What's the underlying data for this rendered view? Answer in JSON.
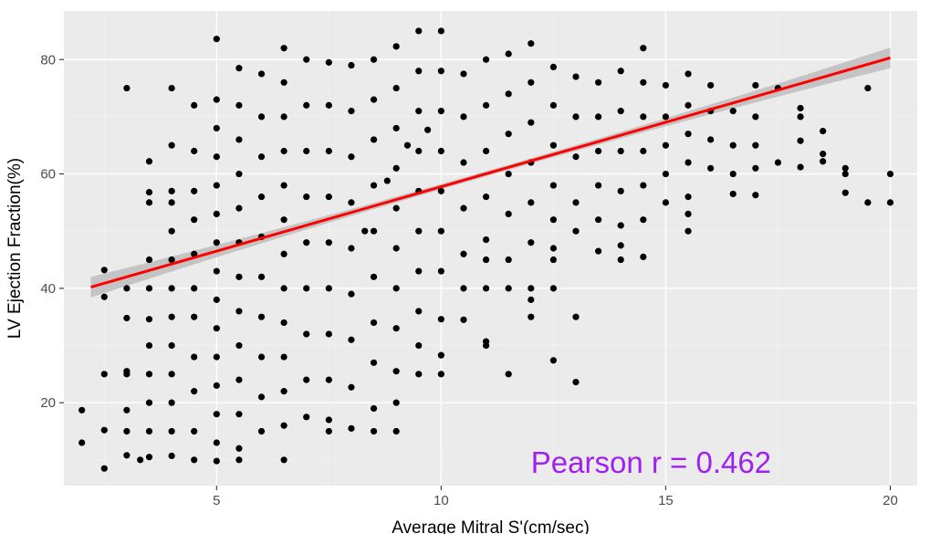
{
  "chart_data": {
    "type": "scatter",
    "title": "",
    "xlabel": "Average Mitral S'(cm/sec)",
    "ylabel": "LV Ejection Fraction(%)",
    "xlim": [
      1.6,
      20.6
    ],
    "ylim": [
      5.5,
      88.5
    ],
    "x_ticks": [
      5,
      10,
      15,
      20
    ],
    "y_ticks": [
      20,
      40,
      60,
      80
    ],
    "grid": true,
    "legend": "none",
    "annotation": {
      "text": "Pearson r =  0.462",
      "x": 12.0,
      "y": 9.5
    },
    "regression": {
      "x_start": 2.2,
      "x_end": 20.0,
      "y_start": 40.2,
      "y_end": 80.3,
      "ci_half_width_ends": 1.8,
      "ci_half_width_center": 0.45
    },
    "points": [
      [
        2.0,
        18.7
      ],
      [
        2.0,
        13.0
      ],
      [
        2.5,
        43.2
      ],
      [
        2.5,
        38.5
      ],
      [
        2.5,
        25.0
      ],
      [
        2.5,
        15.2
      ],
      [
        2.5,
        8.5
      ],
      [
        3.0,
        75.0
      ],
      [
        3.0,
        40.0
      ],
      [
        3.0,
        34.8
      ],
      [
        3.0,
        25.5
      ],
      [
        3.0,
        25.0
      ],
      [
        3.0,
        18.7
      ],
      [
        3.0,
        15.0
      ],
      [
        3.0,
        10.8
      ],
      [
        3.3,
        10.0
      ],
      [
        3.5,
        62.2
      ],
      [
        3.5,
        56.8
      ],
      [
        3.5,
        55.0
      ],
      [
        3.5,
        45.0
      ],
      [
        3.5,
        40.0
      ],
      [
        3.5,
        34.6
      ],
      [
        3.5,
        30.0
      ],
      [
        3.5,
        25.0
      ],
      [
        3.5,
        20.0
      ],
      [
        3.5,
        15.0
      ],
      [
        3.5,
        10.5
      ],
      [
        4.0,
        75.0
      ],
      [
        4.0,
        65.0
      ],
      [
        4.0,
        57.0
      ],
      [
        4.0,
        55.0
      ],
      [
        4.0,
        50.0
      ],
      [
        4.0,
        45.0
      ],
      [
        4.0,
        40.0
      ],
      [
        4.0,
        35.0
      ],
      [
        4.0,
        30.0
      ],
      [
        4.0,
        25.0
      ],
      [
        4.0,
        20.0
      ],
      [
        4.0,
        15.0
      ],
      [
        4.0,
        10.7
      ],
      [
        4.5,
        72.0
      ],
      [
        4.5,
        64.0
      ],
      [
        4.5,
        57.0
      ],
      [
        4.5,
        52.0
      ],
      [
        4.5,
        46.0
      ],
      [
        4.5,
        40.0
      ],
      [
        4.5,
        35.0
      ],
      [
        4.5,
        28.0
      ],
      [
        4.5,
        22.0
      ],
      [
        4.5,
        15.0
      ],
      [
        4.5,
        10.0
      ],
      [
        5.0,
        83.6
      ],
      [
        5.0,
        73.0
      ],
      [
        5.0,
        68.0
      ],
      [
        5.0,
        63.0
      ],
      [
        5.0,
        58.0
      ],
      [
        5.0,
        53.0
      ],
      [
        5.0,
        48.0
      ],
      [
        5.0,
        43.0
      ],
      [
        5.0,
        38.0
      ],
      [
        5.0,
        33.0
      ],
      [
        5.0,
        28.0
      ],
      [
        5.0,
        23.0
      ],
      [
        5.0,
        18.0
      ],
      [
        5.0,
        13.0
      ],
      [
        5.0,
        9.8
      ],
      [
        5.5,
        78.5
      ],
      [
        5.5,
        72.0
      ],
      [
        5.5,
        66.0
      ],
      [
        5.5,
        60.0
      ],
      [
        5.5,
        54.0
      ],
      [
        5.5,
        48.0
      ],
      [
        5.5,
        42.0
      ],
      [
        5.5,
        36.0
      ],
      [
        5.5,
        30.0
      ],
      [
        5.5,
        24.0
      ],
      [
        5.5,
        18.0
      ],
      [
        5.5,
        12.0
      ],
      [
        5.5,
        10.0
      ],
      [
        6.0,
        77.5
      ],
      [
        6.0,
        70.0
      ],
      [
        6.0,
        63.0
      ],
      [
        6.0,
        56.0
      ],
      [
        6.0,
        49.0
      ],
      [
        6.0,
        42.0
      ],
      [
        6.0,
        35.0
      ],
      [
        6.0,
        28.0
      ],
      [
        6.0,
        21.0
      ],
      [
        6.0,
        15.0
      ],
      [
        6.5,
        82.0
      ],
      [
        6.5,
        76.0
      ],
      [
        6.5,
        70.0
      ],
      [
        6.5,
        64.0
      ],
      [
        6.5,
        58.0
      ],
      [
        6.5,
        52.0
      ],
      [
        6.5,
        46.0
      ],
      [
        6.5,
        40.0
      ],
      [
        6.5,
        34.0
      ],
      [
        6.5,
        28.0
      ],
      [
        6.5,
        22.0
      ],
      [
        6.5,
        16.0
      ],
      [
        6.5,
        10.0
      ],
      [
        7.0,
        80.0
      ],
      [
        7.0,
        72.0
      ],
      [
        7.0,
        64.0
      ],
      [
        7.0,
        56.0
      ],
      [
        7.0,
        48.0
      ],
      [
        7.0,
        40.0
      ],
      [
        7.0,
        32.0
      ],
      [
        7.0,
        24.0
      ],
      [
        7.0,
        17.5
      ],
      [
        7.5,
        79.5
      ],
      [
        7.5,
        72.0
      ],
      [
        7.5,
        64.0
      ],
      [
        7.5,
        56.0
      ],
      [
        7.5,
        48.0
      ],
      [
        7.5,
        40.0
      ],
      [
        7.5,
        32.0
      ],
      [
        7.5,
        24.0
      ],
      [
        7.5,
        17.0
      ],
      [
        7.5,
        15.0
      ],
      [
        8.0,
        79.0
      ],
      [
        8.0,
        71.0
      ],
      [
        8.0,
        63.0
      ],
      [
        8.0,
        55.0
      ],
      [
        8.0,
        47.0
      ],
      [
        8.0,
        39.0
      ],
      [
        8.0,
        31.0
      ],
      [
        8.0,
        22.7
      ],
      [
        8.0,
        15.5
      ],
      [
        8.3,
        50.0
      ],
      [
        8.5,
        80.0
      ],
      [
        8.5,
        73.0
      ],
      [
        8.5,
        66.0
      ],
      [
        8.5,
        58.0
      ],
      [
        8.5,
        50.0
      ],
      [
        8.5,
        42.0
      ],
      [
        8.5,
        34.0
      ],
      [
        8.5,
        27.0
      ],
      [
        8.5,
        19.0
      ],
      [
        8.5,
        15.0
      ],
      [
        8.8,
        58.8
      ],
      [
        9.0,
        82.3
      ],
      [
        9.0,
        75.0
      ],
      [
        9.0,
        68.0
      ],
      [
        9.0,
        61.0
      ],
      [
        9.0,
        54.0
      ],
      [
        9.0,
        47.0
      ],
      [
        9.0,
        40.0
      ],
      [
        9.0,
        33.0
      ],
      [
        9.0,
        25.5
      ],
      [
        9.0,
        20.0
      ],
      [
        9.0,
        15.0
      ],
      [
        9.25,
        65.0
      ],
      [
        9.5,
        85.0
      ],
      [
        9.5,
        78.0
      ],
      [
        9.5,
        71.0
      ],
      [
        9.5,
        64.0
      ],
      [
        9.5,
        57.0
      ],
      [
        9.5,
        50.0
      ],
      [
        9.5,
        43.0
      ],
      [
        9.5,
        36.0
      ],
      [
        9.5,
        30.0
      ],
      [
        9.5,
        25.0
      ],
      [
        9.7,
        67.7
      ],
      [
        10.0,
        85.0
      ],
      [
        10.0,
        78.0
      ],
      [
        10.0,
        71.0
      ],
      [
        10.0,
        64.0
      ],
      [
        10.0,
        57.0
      ],
      [
        10.0,
        50.0
      ],
      [
        10.0,
        43.0
      ],
      [
        10.0,
        34.6
      ],
      [
        10.0,
        28.3
      ],
      [
        10.0,
        25.0
      ],
      [
        10.5,
        77.5
      ],
      [
        10.5,
        70.0
      ],
      [
        10.5,
        62.0
      ],
      [
        10.5,
        54.0
      ],
      [
        10.5,
        46.0
      ],
      [
        10.5,
        40.0
      ],
      [
        10.5,
        34.5
      ],
      [
        11.0,
        80.0
      ],
      [
        11.0,
        72.0
      ],
      [
        11.0,
        64.0
      ],
      [
        11.0,
        56.0
      ],
      [
        11.0,
        48.5
      ],
      [
        11.0,
        45.0
      ],
      [
        11.0,
        40.0
      ],
      [
        11.0,
        30.7
      ],
      [
        11.0,
        30.0
      ],
      [
        11.5,
        81.0
      ],
      [
        11.5,
        74.0
      ],
      [
        11.5,
        67.0
      ],
      [
        11.5,
        60.0
      ],
      [
        11.5,
        53.0
      ],
      [
        11.5,
        45.0
      ],
      [
        11.5,
        40.0
      ],
      [
        11.5,
        25.0
      ],
      [
        12.0,
        82.8
      ],
      [
        12.0,
        76.0
      ],
      [
        12.0,
        69.0
      ],
      [
        12.0,
        62.0
      ],
      [
        12.0,
        55.0
      ],
      [
        12.0,
        48.0
      ],
      [
        12.0,
        40.0
      ],
      [
        12.0,
        38.0
      ],
      [
        12.0,
        35.0
      ],
      [
        12.5,
        78.7
      ],
      [
        12.5,
        72.0
      ],
      [
        12.5,
        65.0
      ],
      [
        12.5,
        58.0
      ],
      [
        12.5,
        52.0
      ],
      [
        12.5,
        47.0
      ],
      [
        12.5,
        45.0
      ],
      [
        12.5,
        40.0
      ],
      [
        12.5,
        27.4
      ],
      [
        13.0,
        77.0
      ],
      [
        13.0,
        70.0
      ],
      [
        13.0,
        63.0
      ],
      [
        13.0,
        55.0
      ],
      [
        13.0,
        50.0
      ],
      [
        13.0,
        35.0
      ],
      [
        13.0,
        23.6
      ],
      [
        13.5,
        76.0
      ],
      [
        13.5,
        70.0
      ],
      [
        13.5,
        64.0
      ],
      [
        13.5,
        58.0
      ],
      [
        13.5,
        52.0
      ],
      [
        13.5,
        46.5
      ],
      [
        14.0,
        78.0
      ],
      [
        14.0,
        71.0
      ],
      [
        14.0,
        64.0
      ],
      [
        14.0,
        57.0
      ],
      [
        14.0,
        51.0
      ],
      [
        14.0,
        47.5
      ],
      [
        14.0,
        45.0
      ],
      [
        14.5,
        82.0
      ],
      [
        14.5,
        76.0
      ],
      [
        14.5,
        70.0
      ],
      [
        14.5,
        64.0
      ],
      [
        14.5,
        58.0
      ],
      [
        14.5,
        52.0
      ],
      [
        14.5,
        45.5
      ],
      [
        15.0,
        75.5
      ],
      [
        15.0,
        70.0
      ],
      [
        15.0,
        65.0
      ],
      [
        15.0,
        60.0
      ],
      [
        15.0,
        55.0
      ],
      [
        15.5,
        77.5
      ],
      [
        15.5,
        72.0
      ],
      [
        15.5,
        67.0
      ],
      [
        15.5,
        62.0
      ],
      [
        15.5,
        56.0
      ],
      [
        15.5,
        53.0
      ],
      [
        15.5,
        50.0
      ],
      [
        16.0,
        75.5
      ],
      [
        16.0,
        71.0
      ],
      [
        16.0,
        66.0
      ],
      [
        16.0,
        61.0
      ],
      [
        16.5,
        71.0
      ],
      [
        16.5,
        65.0
      ],
      [
        16.5,
        60.0
      ],
      [
        16.5,
        56.5
      ],
      [
        17.0,
        75.5
      ],
      [
        17.0,
        70.0
      ],
      [
        17.0,
        65.0
      ],
      [
        17.0,
        61.0
      ],
      [
        17.0,
        56.3
      ],
      [
        17.5,
        75.0
      ],
      [
        17.5,
        62.0
      ],
      [
        18.0,
        71.5
      ],
      [
        18.0,
        70.0
      ],
      [
        18.0,
        65.8
      ],
      [
        18.0,
        61.2
      ],
      [
        18.5,
        67.5
      ],
      [
        18.5,
        63.5
      ],
      [
        18.5,
        62.2
      ],
      [
        19.0,
        61.0
      ],
      [
        19.0,
        60.0
      ],
      [
        19.0,
        56.7
      ],
      [
        19.5,
        75.0
      ],
      [
        19.5,
        55.0
      ],
      [
        20.0,
        60.0
      ],
      [
        20.0,
        55.0
      ]
    ],
    "colors": {
      "panel": "#ebebeb",
      "grid_major": "#ffffff",
      "grid_minor": "#f2f2f2",
      "points": "#000000",
      "line": "#ff0000",
      "ci": "#bdbdbd",
      "annotation": "#a020f0"
    }
  }
}
